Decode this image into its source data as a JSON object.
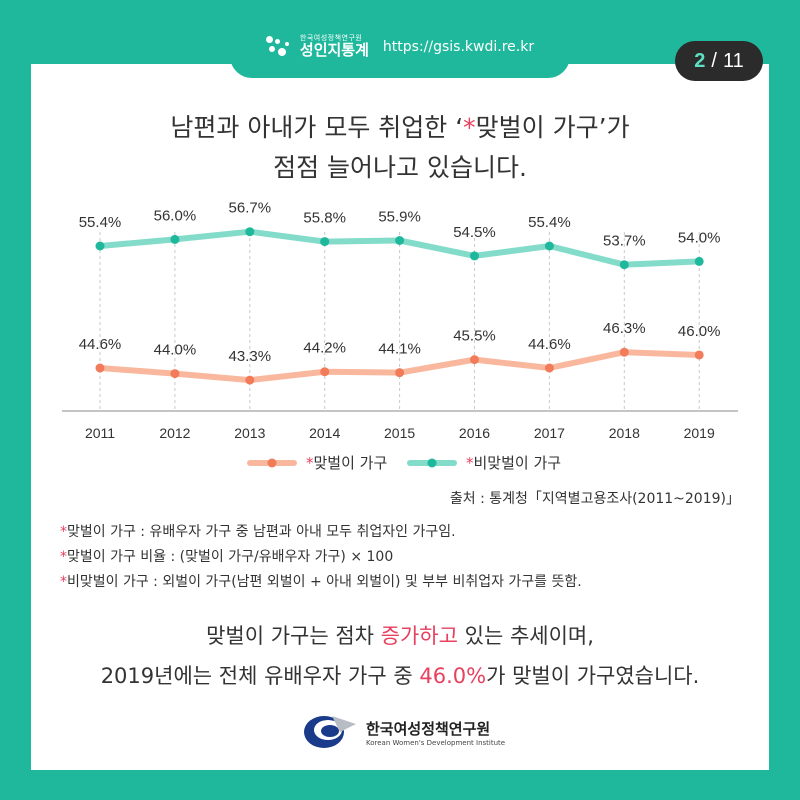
{
  "header": {
    "brand_small": "한국여성정책연구원",
    "brand_big": "성인지통계",
    "url": "https://gsis.kwdi.re.kr"
  },
  "page": {
    "current": "2",
    "separator": "/",
    "total": "11"
  },
  "title": {
    "line1_pre": "남편과 아내가 모두 취업한 ‘",
    "line1_star": "*",
    "line1_post": "맞벌이 가구’가",
    "line2": "점점 늘어나고 있습니다."
  },
  "chart_data": {
    "type": "line",
    "x": [
      "2011",
      "2012",
      "2013",
      "2014",
      "2015",
      "2016",
      "2017",
      "2018",
      "2019"
    ],
    "series": [
      {
        "name": "*맞벌이 가구",
        "color": "#f9b89e",
        "marker_color": "#f27c5a",
        "values": [
          44.6,
          44.0,
          43.3,
          44.2,
          44.1,
          45.5,
          44.6,
          46.3,
          46.0
        ],
        "labels": [
          "44.6%",
          "44.0%",
          "43.3%",
          "44.2%",
          "44.1%",
          "45.5%",
          "44.6%",
          "46.3%",
          "46.0%"
        ]
      },
      {
        "name": "*비맞벌이 가구",
        "color": "#82dcc9",
        "marker_color": "#1fb89c",
        "values": [
          55.4,
          56.0,
          56.7,
          55.8,
          55.9,
          54.5,
          55.4,
          53.7,
          54.0
        ],
        "labels": [
          "55.4%",
          "56.0%",
          "56.7%",
          "55.8%",
          "55.9%",
          "54.5%",
          "55.4%",
          "53.7%",
          "54.0%"
        ]
      }
    ],
    "legend_position": "bottom",
    "grid": "vertical-dashed"
  },
  "source": "출처 : 통계청「지역별고용조사(2011~2019)」",
  "notes": [
    {
      "star": "*",
      "text": "맞벌이 가구 : 유배우자 가구 중 남편과 아내 모두 취업자인 가구임."
    },
    {
      "star": "*",
      "text": "맞벌이 가구 비율 : (맞벌이 가구/유배우자 가구) × 100"
    },
    {
      "star": "*",
      "text": "비맞벌이 가구 : 외벌이 가구(남편 외벌이 + 아내 외벌이) 및 부부 비취업자 가구를 뜻함."
    }
  ],
  "summary": {
    "line1_pre": "맞벌이 가구는 점차 ",
    "line1_hl": "증가하고",
    "line1_post": " 있는 추세이며,",
    "line2_pre": "2019년에는 전체 유배우자 가구 중 ",
    "line2_hl": "46.0%",
    "line2_post": "가 맞벌이 가구였습니다."
  },
  "footer": {
    "org_ko": "한국여성정책연구원",
    "org_en": "Korean Women's Development Institute"
  },
  "colors": {
    "brand": "#1fb89c",
    "accent": "#e8405f",
    "badge": "#2b2b2b"
  }
}
